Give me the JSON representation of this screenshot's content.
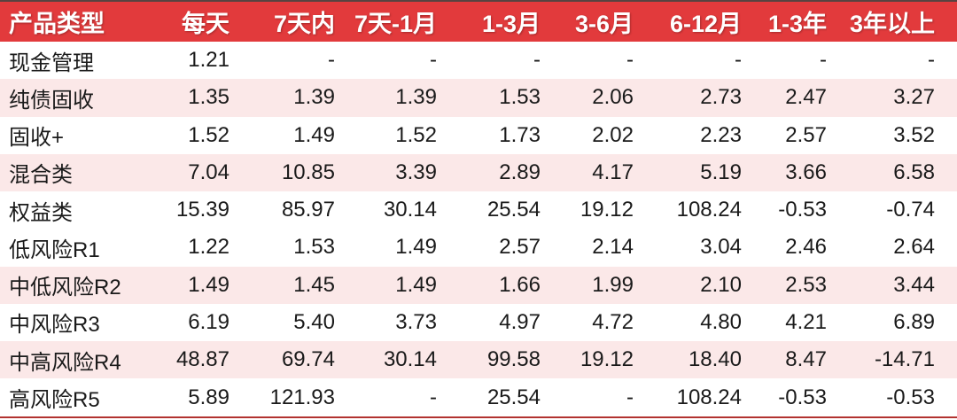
{
  "chart_data": {
    "type": "table",
    "columns": [
      "产品类型",
      "每天",
      "7天内",
      "7天-1月",
      "1-3月",
      "3-6月",
      "6-12月",
      "1-3年",
      "3年以上"
    ],
    "rows": [
      {
        "label": "现金管理",
        "values": [
          "1.21",
          "-",
          "-",
          "-",
          "-",
          "-",
          "-",
          "-"
        ]
      },
      {
        "label": "纯债固收",
        "values": [
          "1.35",
          "1.39",
          "1.39",
          "1.53",
          "2.06",
          "2.73",
          "2.47",
          "3.27"
        ]
      },
      {
        "label": "固收+",
        "values": [
          "1.52",
          "1.49",
          "1.52",
          "1.73",
          "2.02",
          "2.23",
          "2.57",
          "3.52"
        ]
      },
      {
        "label": "混合类",
        "values": [
          "7.04",
          "10.85",
          "3.39",
          "2.89",
          "4.17",
          "5.19",
          "3.66",
          "6.58"
        ]
      },
      {
        "label": "权益类",
        "values": [
          "15.39",
          "85.97",
          "30.14",
          "25.54",
          "19.12",
          "108.24",
          "-0.53",
          "-0.74"
        ]
      },
      {
        "label": "",
        "values": [
          "",
          "",
          "",
          "",
          "",
          "",
          "",
          ""
        ]
      },
      {
        "label": "低风险R1",
        "values": [
          "1.22",
          "1.53",
          "1.49",
          "2.57",
          "2.14",
          "3.04",
          "2.46",
          "2.64"
        ]
      },
      {
        "label": "中低风险R2",
        "values": [
          "1.49",
          "1.45",
          "1.49",
          "1.66",
          "1.99",
          "2.10",
          "2.53",
          "3.44"
        ]
      },
      {
        "label": "中风险R3",
        "values": [
          "6.19",
          "5.40",
          "3.73",
          "4.97",
          "4.72",
          "4.80",
          "4.21",
          "6.89"
        ]
      },
      {
        "label": "中高风险R4",
        "values": [
          "48.87",
          "69.74",
          "30.14",
          "99.58",
          "19.12",
          "18.40",
          "8.47",
          "-14.71"
        ]
      },
      {
        "label": "高风险R5",
        "values": [
          "5.89",
          "121.93",
          "-",
          "25.54",
          "-",
          "108.24",
          "-0.53",
          "-0.53"
        ]
      }
    ]
  },
  "colors": {
    "header_bg": "#e23a3c",
    "header_text": "#ffffff",
    "row_stripe": "#fbe8e8",
    "body_text": "#1a1a1a",
    "bottom_border": "#b23330"
  }
}
